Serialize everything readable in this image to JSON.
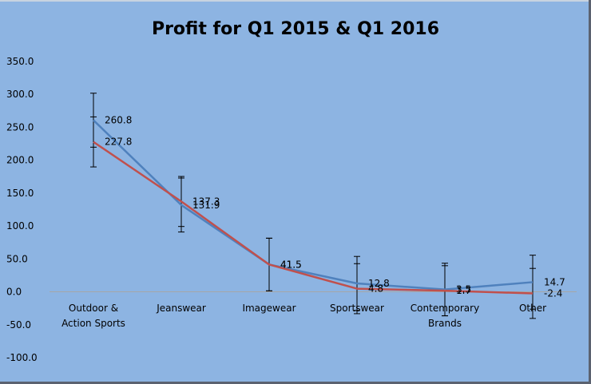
{
  "chart_data": {
    "type": "line",
    "title": "Profit  for Q1 2015 & Q1 2016",
    "categories": [
      "Outdoor & Action Sports",
      "Jeanswear",
      "Imagewear",
      "Sportswear",
      "Contemporary Brands",
      "Other"
    ],
    "category_lines": [
      [
        "Outdoor &",
        "Action Sports"
      ],
      [
        "Jeanswear"
      ],
      [
        "Imagewear"
      ],
      [
        "Sportswear"
      ],
      [
        "Contemporary",
        "Brands"
      ],
      [
        "Other"
      ]
    ],
    "series": [
      {
        "values": [
          260.8,
          131.9,
          41.5,
          12.8,
          3.5,
          14.7
        ],
        "labels": [
          "260.8",
          "131.9",
          "41.5",
          "12.8",
          "3.5",
          "14.7"
        ],
        "error": [
          41,
          41,
          40,
          41,
          40,
          41
        ],
        "color": "#4f81bd"
      },
      {
        "values": [
          227.8,
          137.3,
          41.5,
          4.8,
          1.7,
          -2.4
        ],
        "labels": [
          "227.8",
          "137.3",
          "41.5",
          "4.8",
          "1.7",
          "-2.4"
        ],
        "error": [
          38,
          38,
          40,
          38,
          38,
          38
        ],
        "color": "#c0504d"
      }
    ],
    "y_ticks": [
      "350.0",
      "300.0",
      "250.0",
      "200.0",
      "150.0",
      "100.0",
      "50.0",
      "0.0",
      "-50.0",
      "-100.0"
    ],
    "ylim": [
      -100,
      350
    ],
    "grid": false,
    "legend": "none",
    "background": "#8db4e2",
    "zero_line_color": "#a6a6a6"
  }
}
